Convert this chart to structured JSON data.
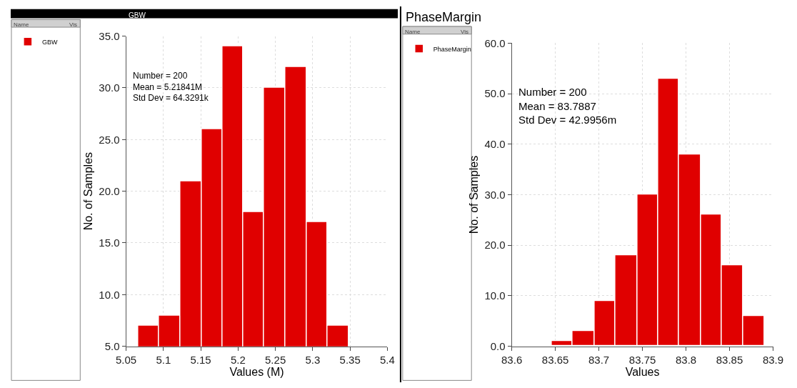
{
  "chart_data": [
    {
      "type": "histogram",
      "title": "GBW",
      "xlabel": "Values (M)",
      "ylabel": "No. of Samples",
      "legend_title": "Name",
      "bins": [
        5.066,
        5.094,
        5.123,
        5.151,
        5.179,
        5.207,
        5.235,
        5.263,
        5.292,
        5.32,
        5.348
      ],
      "series": [
        {
          "name": "GBW",
          "color": "#e00000",
          "values": [
            7,
            8,
            21,
            26,
            34,
            18,
            30,
            32,
            17,
            7
          ]
        }
      ],
      "xlim": [
        5.05,
        5.4
      ],
      "xticks": [
        5.05,
        5.1,
        5.15,
        5.2,
        5.25,
        5.3,
        5.35,
        5.4
      ],
      "ylim": [
        5,
        35
      ],
      "yticks": [
        {
          "value": 5,
          "label": "5.0"
        },
        {
          "value": 10,
          "label": "10.0"
        },
        {
          "value": 15,
          "label": "15.0"
        },
        {
          "value": 20,
          "label": "20.0"
        },
        {
          "value": 25,
          "label": "25.0"
        },
        {
          "value": 30,
          "label": "30.0"
        },
        {
          "value": 35,
          "label": "35.0"
        }
      ],
      "annotations": [
        "Number = 200\nMean = 5.21841M\nStd Dev = 64.3291k",
        "Vis"
      ],
      "grid": true,
      "legend": "left"
    },
    {
      "type": "histogram",
      "title": "PhaseMargin",
      "xlabel": "Values",
      "ylabel": "No. of Samples",
      "legend_title": "Name",
      "bins": [
        83.646,
        83.67,
        83.695,
        83.719,
        83.744,
        83.768,
        83.792,
        83.817,
        83.841,
        83.866,
        83.89
      ],
      "series": [
        {
          "name": "PhaseMargin",
          "color": "#e00000",
          "values": [
            1,
            3,
            9,
            18,
            30,
            53,
            38,
            26,
            16,
            6
          ]
        }
      ],
      "xlim": [
        83.6,
        83.9
      ],
      "xticks": [
        83.6,
        83.65,
        83.7,
        83.75,
        83.8,
        83.85,
        83.9
      ],
      "ylim": [
        0,
        60
      ],
      "yticks": [
        {
          "value": 0,
          "label": "0.0"
        },
        {
          "value": 10,
          "label": "10.0"
        },
        {
          "value": 20,
          "label": "20.0"
        },
        {
          "value": 30,
          "label": "30.0"
        },
        {
          "value": 40,
          "label": "40.0"
        },
        {
          "value": 50,
          "label": "50.0"
        },
        {
          "value": 60,
          "label": "60.0"
        }
      ],
      "annotations": [
        "Number = 200\nMean = 83.7887\nStd Dev = 42.9956m",
        "Vis"
      ],
      "grid": true,
      "legend": "left"
    }
  ]
}
